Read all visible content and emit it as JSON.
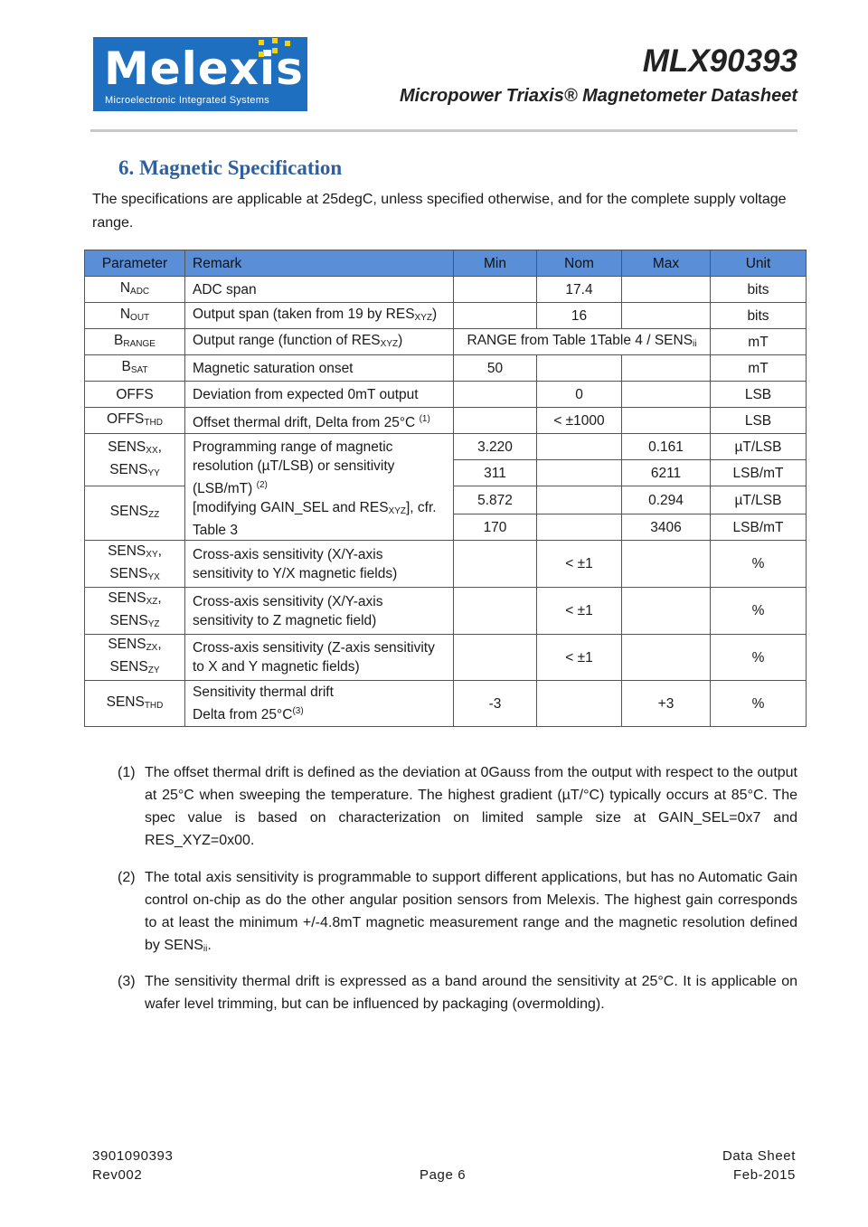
{
  "header": {
    "logo_word": "Melexis",
    "logo_tagline": "Microelectronic Integrated Systems",
    "doc_title": "MLX90393",
    "doc_subtitle": "Micropower Triaxis® Magnetometer Datasheet",
    "brand_color": "#1f6fc0"
  },
  "section": {
    "title": "6. Magnetic Specification",
    "intro": "The specifications are applicable at 25degC, unless specified otherwise, and for the complete supply voltage range."
  },
  "table": {
    "header_color": "#5a8fd8",
    "columns": [
      "Parameter",
      "Remark",
      "Min",
      "Nom",
      "Max",
      "Unit"
    ],
    "rows": [
      [
        [
          {
            "t": "N"
          },
          {
            "t": "ADC",
            "s": "sub"
          }
        ],
        [
          {
            "t": "ADC span"
          }
        ],
        "",
        "17.4",
        "",
        "bits"
      ],
      [
        [
          {
            "t": "N"
          },
          {
            "t": "OUT",
            "s": "sub"
          }
        ],
        [
          {
            "t": "Output span (taken from 19 by RES"
          },
          {
            "t": "XYZ",
            "s": "sub"
          },
          {
            "t": ")"
          }
        ],
        "",
        "16",
        "",
        "bits"
      ],
      [
        [
          {
            "t": "B"
          },
          {
            "t": "RANGE",
            "s": "sub"
          }
        ],
        [
          {
            "t": "Output range (function of RES"
          },
          {
            "t": "XYZ",
            "s": "sub"
          },
          {
            "t": ")"
          }
        ],
        {
          "span": 3,
          "seg": [
            {
              "t": "RANGE from Table 1Table 4 / SENS"
            },
            {
              "t": "ii",
              "s": "sub"
            }
          ]
        },
        "mT"
      ],
      [
        [
          {
            "t": "B"
          },
          {
            "t": "SAT",
            "s": "sub"
          }
        ],
        [
          {
            "t": "Magnetic saturation onset"
          }
        ],
        "50",
        "",
        "",
        "mT"
      ],
      [
        [
          {
            "t": "OFFS"
          }
        ],
        [
          {
            "t": "Deviation from expected 0mT output"
          }
        ],
        "",
        "0",
        "",
        "LSB"
      ],
      [
        [
          {
            "t": "OFFS"
          },
          {
            "t": "THD",
            "s": "sub"
          }
        ],
        [
          {
            "t": "Offset thermal drift, Delta from 25°C "
          },
          {
            "t": "(1)",
            "s": "sup"
          }
        ],
        "",
        "< ±1000",
        "",
        "LSB"
      ],
      [
        {
          "rs": 2,
          "seg": [
            {
              "t": "SENS"
            },
            {
              "t": "XX",
              "s": "sub"
            },
            {
              "t": ","
            },
            {
              "br": 1
            },
            {
              "t": "SENS"
            },
            {
              "t": "YY",
              "s": "sub"
            }
          ]
        },
        {
          "rs": 4,
          "seg": [
            {
              "t": "Programming range of magnetic resolution (µT/LSB) or sensitivity (LSB/mT) "
            },
            {
              "t": "(2)",
              "s": "sup"
            },
            {
              "br": 1
            },
            {
              "t": "[modifying GAIN_SEL and RES"
            },
            {
              "t": "XYZ",
              "s": "sub"
            },
            {
              "t": "], cfr. Table 3"
            }
          ]
        },
        "3.220",
        "",
        "0.161",
        "µT/LSB"
      ],
      [
        "311",
        "",
        "6211",
        "LSB/mT"
      ],
      [
        {
          "rs": 2,
          "seg": [
            {
              "t": "SENS"
            },
            {
              "t": "ZZ",
              "s": "sub"
            }
          ]
        },
        "5.872",
        "",
        "0.294",
        "µT/LSB"
      ],
      [
        "170",
        "",
        "3406",
        "LSB/mT"
      ],
      [
        [
          {
            "t": "SENS"
          },
          {
            "t": "XY",
            "s": "sub"
          },
          {
            "t": ","
          },
          {
            "br": 1
          },
          {
            "t": "SENS"
          },
          {
            "t": "YX",
            "s": "sub"
          }
        ],
        [
          {
            "t": "Cross-axis sensitivity (X/Y-axis sensitivity to Y/X magnetic fields)"
          }
        ],
        "",
        "< ±1",
        "",
        "%"
      ],
      [
        [
          {
            "t": "SENS"
          },
          {
            "t": "XZ",
            "s": "sub"
          },
          {
            "t": ","
          },
          {
            "br": 1
          },
          {
            "t": "SENS"
          },
          {
            "t": "YZ",
            "s": "sub"
          }
        ],
        [
          {
            "t": "Cross-axis sensitivity (X/Y-axis sensitivity to Z magnetic field)"
          }
        ],
        "",
        "< ±1",
        "",
        "%"
      ],
      [
        [
          {
            "t": "SENS"
          },
          {
            "t": "ZX",
            "s": "sub"
          },
          {
            "t": ","
          },
          {
            "br": 1
          },
          {
            "t": "SENS"
          },
          {
            "t": "ZY",
            "s": "sub"
          }
        ],
        [
          {
            "t": "Cross-axis sensitivity (Z-axis sensitivity to X and Y magnetic fields)"
          }
        ],
        "",
        "< ±1",
        "",
        "%"
      ],
      [
        [
          {
            "t": "SENS"
          },
          {
            "t": "THD",
            "s": "sub"
          }
        ],
        [
          {
            "t": "Sensitivity thermal drift"
          },
          {
            "br": 1
          },
          {
            "t": "Delta from 25°C"
          },
          {
            "t": "(3)",
            "s": "sup"
          }
        ],
        "-3",
        "",
        "+3",
        "%"
      ]
    ]
  },
  "footnotes": [
    {
      "num": "(1)",
      "text": "The offset thermal drift is defined as the deviation at 0Gauss from the output with respect to the output at 25°C when sweeping the temperature. The highest gradient (µT/°C) typically occurs at 85°C. The spec value is based on characterization on limited sample size at GAIN_SEL=0x7 and RES_XYZ=0x00."
    },
    {
      "num": "(2)",
      "text": "The total axis sensitivity is programmable to support different applications, but has no Automatic Gain control on-chip as do the other angular position sensors from Melexis. The highest gain corresponds to at least the minimum +/-4.8mT magnetic measurement range and the magnetic resolution defined by SENS",
      "sub": "ii",
      "tail": "."
    },
    {
      "num": "(3)",
      "text": "The sensitivity thermal drift is expressed as a band around the sensitivity at 25°C. It is applicable on wafer level trimming, but can be influenced by packaging (overmolding)."
    }
  ],
  "footer": {
    "doc_number": "3901090393",
    "revision": "Rev002",
    "page": "Page 6",
    "doc_type": "Data Sheet",
    "date": "Feb-2015"
  }
}
